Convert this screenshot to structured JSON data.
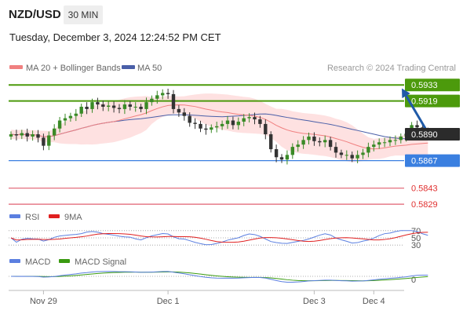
{
  "header": {
    "symbol": "NZD/USD",
    "timeframe": "30 MIN",
    "timestamp": "Tuesday, December 3, 2024 12:24:52 PM CET"
  },
  "credit": "Research © 2024 Trading Central",
  "colors": {
    "bull": "#3a8a26",
    "bear": "#333333",
    "ma20": "#f08080",
    "ma50": "#4a5fa8",
    "band": "#fdd7d7",
    "resistance": "#4c9a0c",
    "pivot": "#3a7fe0",
    "support": "#e06070",
    "arrow": "#1f5aa8",
    "rsi": "#5b7fe0",
    "rsi_ma": "#e02020",
    "macd": "#5b7fe0",
    "macd_signal": "#3a9a10"
  },
  "chart_data": [
    {
      "type": "candlestick",
      "legend": [
        {
          "name": "MA 20 + Bollinger Bands",
          "color": "#f08080"
        },
        {
          "name": "MA 50",
          "color": "#4a5fa8"
        }
      ],
      "ylim": [
        0.5825,
        0.594
      ],
      "x_ticks": [
        {
          "label": "Nov 29",
          "index": 6
        },
        {
          "label": "Dec 1",
          "index": 29
        },
        {
          "label": "Dec 3",
          "index": 56
        },
        {
          "label": "Dec 4",
          "index": 67
        }
      ],
      "last_price": {
        "value": 0.589,
        "label": "0.5890"
      },
      "levels": [
        {
          "kind": "resistance",
          "value": 0.5933,
          "label": "0.5933"
        },
        {
          "kind": "resistance",
          "value": 0.5919,
          "label": "0.5919"
        },
        {
          "kind": "pivot",
          "value": 0.5867,
          "label": "0.5867"
        },
        {
          "kind": "support",
          "value": 0.5843,
          "label": "0.5843"
        },
        {
          "kind": "support",
          "value": 0.5829,
          "label": "0.5829"
        }
      ],
      "forecast_arrow": {
        "from": 0.5889,
        "to": 0.593
      },
      "closes": [
        0.589,
        0.5889,
        0.5891,
        0.5888,
        0.589,
        0.5887,
        0.588,
        0.5889,
        0.5895,
        0.5902,
        0.5904,
        0.5906,
        0.5908,
        0.5914,
        0.5912,
        0.5918,
        0.5916,
        0.5914,
        0.5915,
        0.5913,
        0.5912,
        0.5916,
        0.5914,
        0.5914,
        0.5912,
        0.5918,
        0.5921,
        0.5924,
        0.5926,
        0.5925,
        0.5912,
        0.5909,
        0.5906,
        0.59,
        0.5899,
        0.5895,
        0.5894,
        0.5896,
        0.5897,
        0.5899,
        0.5902,
        0.5898,
        0.5901,
        0.5904,
        0.5905,
        0.5903,
        0.5899,
        0.589,
        0.5877,
        0.587,
        0.5868,
        0.5872,
        0.5879,
        0.5881,
        0.5885,
        0.5888,
        0.5884,
        0.5883,
        0.5885,
        0.5879,
        0.5874,
        0.5872,
        0.5872,
        0.5869,
        0.5872,
        0.5874,
        0.5879,
        0.5881,
        0.5883,
        0.5883,
        0.5885,
        0.5885,
        0.5888,
        0.589,
        0.5898,
        0.5896,
        0.5892,
        0.589
      ]
    },
    {
      "type": "line",
      "series": [
        {
          "name": "RSI",
          "color": "#5b7fe0"
        },
        {
          "name": "9MA",
          "color": "#e02020"
        }
      ],
      "y_ticks": [
        {
          "value": 70,
          "label": "70"
        },
        {
          "value": 50,
          "label": "50"
        },
        {
          "value": 30,
          "label": "30"
        }
      ]
    },
    {
      "type": "line",
      "series": [
        {
          "name": "MACD",
          "color": "#5b7fe0"
        },
        {
          "name": "MACD Signal",
          "color": "#3a9a10"
        }
      ],
      "y_ticks": [
        {
          "value": 0,
          "label": "0"
        }
      ]
    }
  ]
}
